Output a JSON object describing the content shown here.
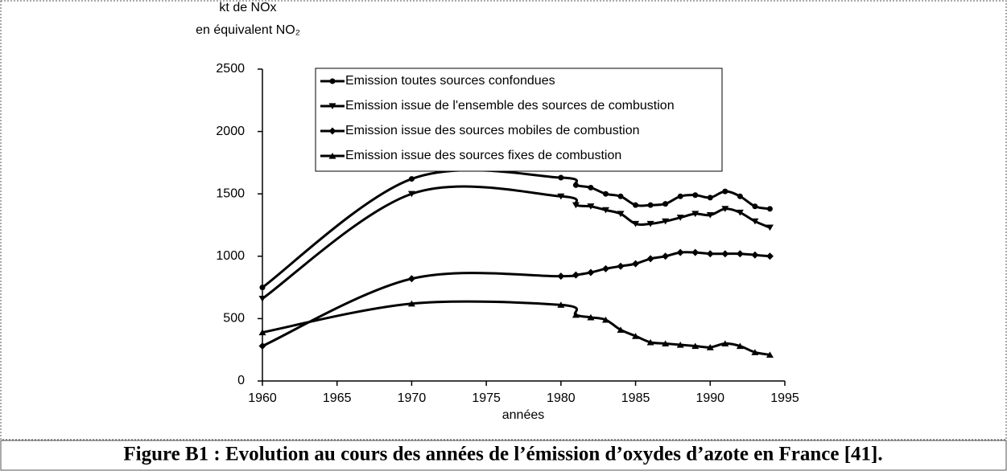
{
  "chart_data": {
    "type": "line",
    "y_label": [
      "kt de NOx",
      "en équivalent NO₂"
    ],
    "x_label": "années",
    "caption": "Figure B1 : Evolution au cours des années de l’émission d’oxydes d’azote en France [41].",
    "x": [
      1960,
      1970,
      1980,
      1981,
      1982,
      1983,
      1984,
      1985,
      1986,
      1987,
      1988,
      1989,
      1990,
      1991,
      1992,
      1993,
      1994
    ],
    "series": [
      {
        "name": "Emission toutes sources confondues",
        "color": "#000000",
        "marker": "circle",
        "values": [
          750,
          1620,
          1630,
          1570,
          1550,
          1500,
          1480,
          1410,
          1410,
          1420,
          1480,
          1490,
          1470,
          1520,
          1480,
          1400,
          1380
        ]
      },
      {
        "name": "Emission issue de l'ensemble des sources de combustion",
        "color": "#000000",
        "marker": "triangle-down",
        "values": [
          660,
          1500,
          1480,
          1410,
          1400,
          1370,
          1340,
          1260,
          1260,
          1280,
          1310,
          1340,
          1330,
          1380,
          1350,
          1280,
          1230
        ]
      },
      {
        "name": "Emission issue des sources mobiles de combustion",
        "color": "#000000",
        "marker": "diamond",
        "values": [
          280,
          820,
          840,
          850,
          870,
          900,
          920,
          940,
          980,
          1000,
          1030,
          1030,
          1020,
          1020,
          1020,
          1010,
          1000
        ]
      },
      {
        "name": "Emission issue des sources fixes de combustion",
        "color": "#000000",
        "marker": "triangle-up",
        "values": [
          390,
          620,
          610,
          530,
          510,
          490,
          410,
          360,
          310,
          300,
          290,
          280,
          270,
          300,
          280,
          230,
          210
        ]
      }
    ],
    "xlim": [
      1960,
      1995
    ],
    "xticks": [
      1960,
      1965,
      1970,
      1975,
      1980,
      1985,
      1990,
      1995
    ],
    "ylim": [
      0,
      2500
    ],
    "yticks": [
      0,
      500,
      1000,
      1500,
      2000,
      2500
    ],
    "grid": false
  }
}
